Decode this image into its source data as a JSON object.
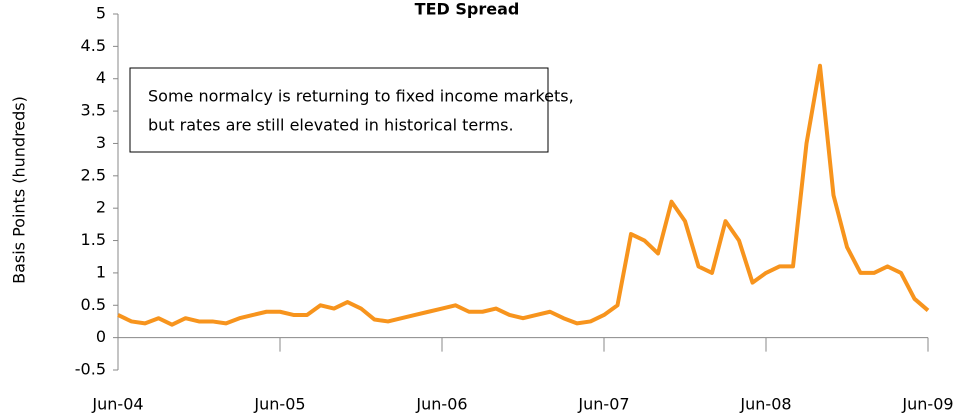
{
  "chart_data": {
    "type": "line",
    "title": "TED Spread",
    "y_label": "Basis Points (hundreds)",
    "annotation": [
      "Some normalcy is returning to fixed income markets,",
      "but rates are still elevated in historical terms."
    ],
    "x": [
      "2004-06",
      "2004-07",
      "2004-08",
      "2004-09",
      "2004-10",
      "2004-11",
      "2004-12",
      "2005-01",
      "2005-02",
      "2005-03",
      "2005-04",
      "2005-05",
      "2005-06",
      "2005-07",
      "2005-08",
      "2005-09",
      "2005-10",
      "2005-11",
      "2005-12",
      "2006-01",
      "2006-02",
      "2006-03",
      "2006-04",
      "2006-05",
      "2006-06",
      "2006-07",
      "2006-08",
      "2006-09",
      "2006-10",
      "2006-11",
      "2006-12",
      "2007-01",
      "2007-02",
      "2007-03",
      "2007-04",
      "2007-05",
      "2007-06",
      "2007-07",
      "2007-08",
      "2007-09",
      "2007-10",
      "2007-11",
      "2007-12",
      "2008-01",
      "2008-02",
      "2008-03",
      "2008-04",
      "2008-05",
      "2008-06",
      "2008-07",
      "2008-08",
      "2008-09",
      "2008-10",
      "2008-11",
      "2008-12",
      "2009-01",
      "2009-02",
      "2009-03",
      "2009-04",
      "2009-05",
      "2009-06"
    ],
    "series": [
      {
        "name": "TED Spread",
        "color": "#f7941d",
        "values": [
          0.35,
          0.25,
          0.22,
          0.3,
          0.2,
          0.3,
          0.25,
          0.25,
          0.22,
          0.3,
          0.35,
          0.4,
          0.4,
          0.35,
          0.35,
          0.5,
          0.45,
          0.55,
          0.45,
          0.28,
          0.25,
          0.3,
          0.35,
          0.4,
          0.45,
          0.5,
          0.4,
          0.4,
          0.45,
          0.35,
          0.3,
          0.35,
          0.4,
          0.3,
          0.22,
          0.25,
          0.35,
          0.5,
          1.6,
          1.5,
          1.3,
          2.1,
          1.8,
          1.1,
          1.0,
          1.8,
          1.5,
          0.85,
          1.0,
          1.1,
          1.1,
          3.0,
          4.2,
          2.2,
          1.4,
          1.0,
          1.0,
          1.1,
          1.0,
          0.6,
          0.42
        ]
      }
    ],
    "ylim": [
      -0.5,
      5
    ],
    "yticks": [
      -0.5,
      0,
      0.5,
      1,
      1.5,
      2,
      2.5,
      3,
      3.5,
      4,
      4.5,
      5
    ],
    "xticks": [
      {
        "value": "2004-06",
        "label": "Jun-04"
      },
      {
        "value": "2005-06",
        "label": "Jun-05"
      },
      {
        "value": "2006-06",
        "label": "Jun-06"
      },
      {
        "value": "2007-06",
        "label": "Jun-07"
      },
      {
        "value": "2008-06",
        "label": "Jun-08"
      },
      {
        "value": "2009-06",
        "label": "Jun-09"
      }
    ]
  }
}
